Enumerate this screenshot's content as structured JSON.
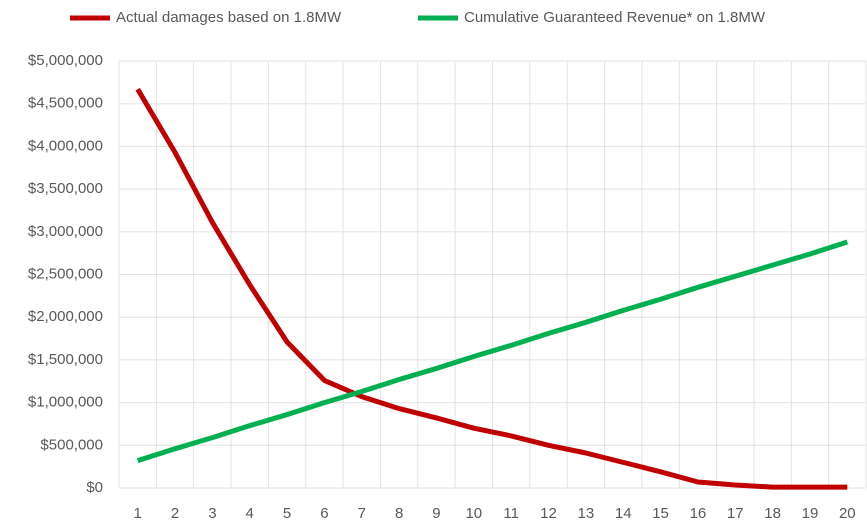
{
  "chart_data": {
    "type": "line",
    "categories": [
      1,
      2,
      3,
      4,
      5,
      6,
      7,
      8,
      9,
      10,
      11,
      12,
      13,
      14,
      15,
      16,
      17,
      18,
      19,
      20
    ],
    "series": [
      {
        "name": "Actual damages based on 1.8MW",
        "color": "#c00000",
        "values": [
          4670000,
          3930000,
          3110000,
          2380000,
          1710000,
          1260000,
          1070000,
          930000,
          820000,
          700000,
          610000,
          500000,
          410000,
          300000,
          190000,
          70000,
          35000,
          10000,
          10000,
          10000
        ]
      },
      {
        "name": "Cumulative Guaranteed Revenue* on 1.8MW",
        "color": "#00b050",
        "values": [
          320000,
          460000,
          590000,
          730000,
          860000,
          1000000,
          1130000,
          1270000,
          1400000,
          1540000,
          1670000,
          1810000,
          1940000,
          2080000,
          2210000,
          2350000,
          2480000,
          2610000,
          2740000,
          2880000
        ]
      }
    ],
    "ylim": [
      0,
      5000000
    ],
    "yticks": [
      {
        "value": 0,
        "label": "$0"
      },
      {
        "value": 500000,
        "label": "$500,000"
      },
      {
        "value": 1000000,
        "label": "$1,000,000"
      },
      {
        "value": 1500000,
        "label": "$1,500,000"
      },
      {
        "value": 2000000,
        "label": "$2,000,000"
      },
      {
        "value": 2500000,
        "label": "$2,500,000"
      },
      {
        "value": 3000000,
        "label": "$3,000,000"
      },
      {
        "value": 3500000,
        "label": "$3,500,000"
      },
      {
        "value": 4000000,
        "label": "$4,000,000"
      },
      {
        "value": 4500000,
        "label": "$4,500,000"
      },
      {
        "value": 5000000,
        "label": "$5,000,000"
      }
    ],
    "grid": true,
    "legend": "top"
  }
}
